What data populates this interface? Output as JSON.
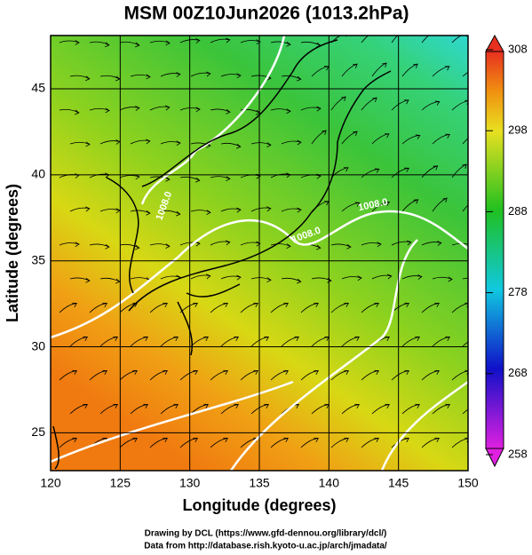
{
  "map": {
    "title": "MSM 00Z10Jun2026 (1013.2hPa)",
    "xlabel": "Longitude (degrees)",
    "ylabel": "Latitude  (degrees)",
    "xlim": [
      120,
      150
    ],
    "ylim": [
      22.8,
      48.1
    ],
    "xticks": [
      120,
      125,
      130,
      135,
      140,
      145,
      150
    ],
    "yticks": [
      25,
      30,
      35,
      40,
      45
    ],
    "colorbar": {
      "lim": [
        258,
        308
      ],
      "ticks": [
        258,
        268,
        278,
        288,
        298,
        308
      ]
    },
    "contour_labels": [
      "1008.0",
      "1008.0",
      "1008.0"
    ],
    "credits": [
      "Drawing by DCL (https://www.gfd-dennou.org/library/dcl/)",
      "Data from http://database.rish.kyoto-u.ac.jp/arch/jmadata/"
    ]
  }
}
